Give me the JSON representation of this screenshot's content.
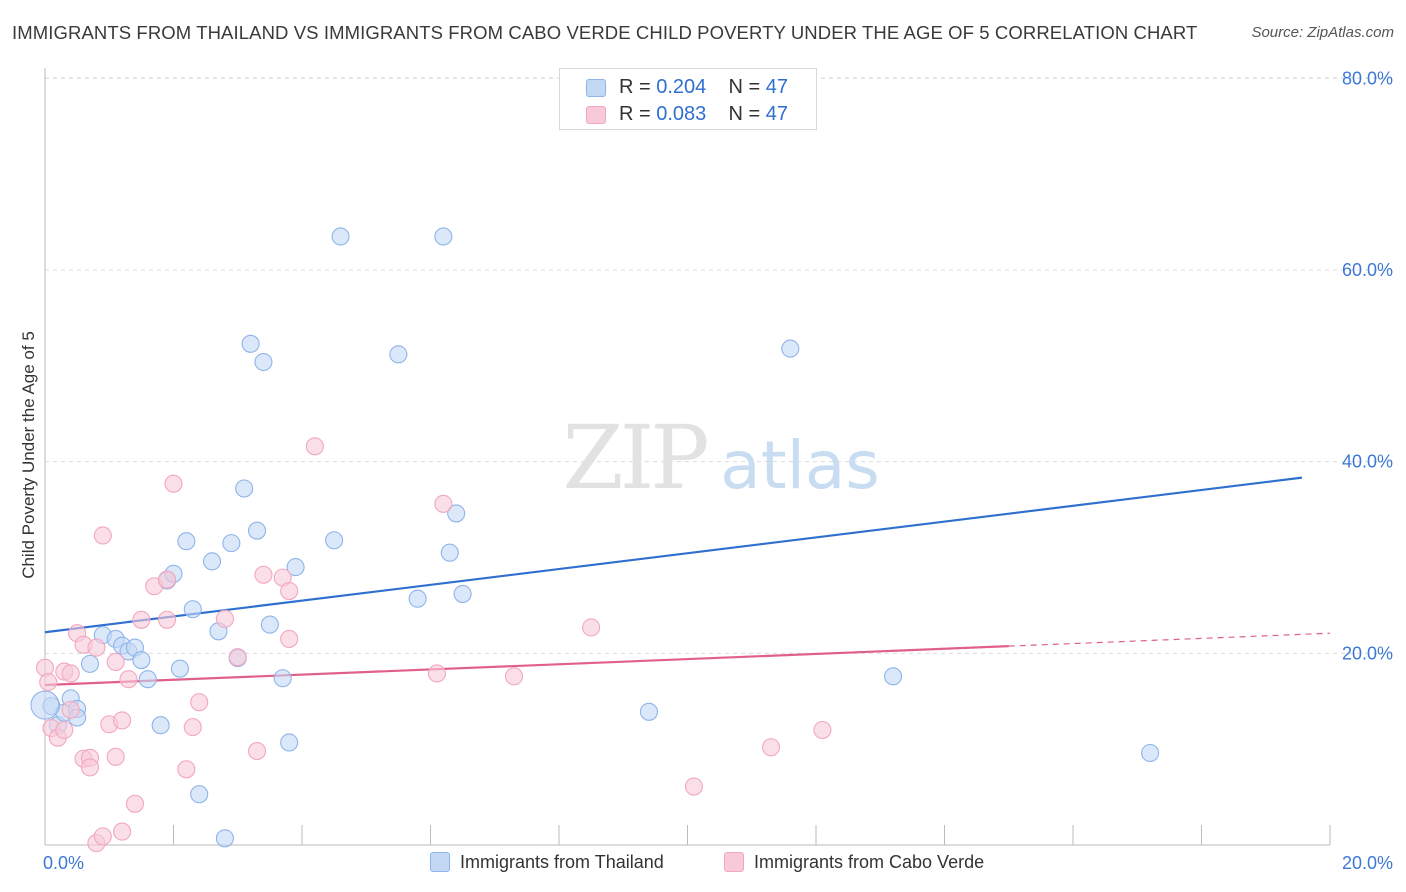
{
  "title": "IMMIGRANTS FROM THAILAND VS IMMIGRANTS FROM CABO VERDE CHILD POVERTY UNDER THE AGE OF 5 CORRELATION CHART",
  "source": "Source: ZipAtlas.com",
  "watermark": {
    "zip": "ZIP",
    "atlas": "atlas"
  },
  "legend_top": [
    {
      "r_label": "R = ",
      "r_value": "0.204",
      "n_label": "N = ",
      "n_value": "47"
    },
    {
      "r_label": "R = ",
      "r_value": "0.083",
      "n_label": "N = ",
      "n_value": "47"
    }
  ],
  "chart_data": {
    "type": "scatter",
    "xlabel": "",
    "ylabel": "Child Poverty Under the Age of 5",
    "xlim": [
      0,
      20
    ],
    "ylim": [
      0,
      80
    ],
    "x_tick_labels": [
      {
        "value": 0,
        "label": "0.0%"
      },
      {
        "value": 20,
        "label": "20.0%"
      }
    ],
    "y_tick_labels": [
      {
        "value": 20,
        "label": "20.0%"
      },
      {
        "value": 40,
        "label": "40.0%"
      },
      {
        "value": 60,
        "label": "60.0%"
      },
      {
        "value": 80,
        "label": "80.0%"
      }
    ],
    "grid": true,
    "legend_position": "bottom",
    "series": [
      {
        "name": "Immigrants from Thailand",
        "color": "#8fb4e8",
        "fill": "#c3d8f5",
        "line_color": "#2f6fd0",
        "trend": {
          "x": [
            0,
            20
          ],
          "y": [
            22.2,
            38.7
          ]
        },
        "trend_solid_to": 20,
        "points": [
          [
            0.1,
            14.5
          ],
          [
            0.2,
            12.5
          ],
          [
            0.3,
            13.8
          ],
          [
            0.4,
            15.3
          ],
          [
            0.5,
            14.2
          ],
          [
            0.5,
            13.3
          ],
          [
            0.7,
            18.9
          ],
          [
            0.9,
            21.9
          ],
          [
            1.1,
            21.5
          ],
          [
            1.2,
            20.8
          ],
          [
            1.3,
            20.2
          ],
          [
            1.4,
            20.6
          ],
          [
            1.5,
            19.3
          ],
          [
            1.6,
            17.3
          ],
          [
            1.8,
            12.5
          ],
          [
            1.9,
            27.6
          ],
          [
            2.0,
            28.3
          ],
          [
            2.1,
            18.4
          ],
          [
            2.2,
            31.7
          ],
          [
            2.3,
            24.6
          ],
          [
            2.4,
            5.3
          ],
          [
            2.6,
            29.6
          ],
          [
            2.7,
            22.3
          ],
          [
            2.8,
            0.7
          ],
          [
            2.9,
            31.5
          ],
          [
            3.0,
            19.5
          ],
          [
            3.1,
            37.2
          ],
          [
            3.2,
            52.3
          ],
          [
            3.3,
            32.8
          ],
          [
            3.4,
            50.4
          ],
          [
            3.5,
            23.0
          ],
          [
            3.7,
            17.4
          ],
          [
            3.8,
            10.7
          ],
          [
            3.9,
            29.0
          ],
          [
            4.5,
            31.8
          ],
          [
            4.6,
            63.5
          ],
          [
            5.5,
            51.2
          ],
          [
            5.8,
            25.7
          ],
          [
            6.2,
            63.5
          ],
          [
            6.3,
            30.5
          ],
          [
            6.4,
            34.6
          ],
          [
            6.5,
            26.2
          ],
          [
            9.4,
            13.9
          ],
          [
            11.6,
            51.8
          ],
          [
            13.2,
            17.6
          ],
          [
            17.2,
            9.6
          ],
          [
            0.0,
            14.6
          ]
        ]
      },
      {
        "name": "Immigrants from Cabo Verde",
        "color": "#f2a7bf",
        "fill": "#f8cad9",
        "line_color": "#e0608a",
        "trend": {
          "x": [
            0,
            20
          ],
          "y": [
            16.7,
            22.1
          ]
        },
        "trend_solid_to": 15,
        "points": [
          [
            0.0,
            18.5
          ],
          [
            0.1,
            12.2
          ],
          [
            0.2,
            11.2
          ],
          [
            0.3,
            18.1
          ],
          [
            0.4,
            14.1
          ],
          [
            0.4,
            17.9
          ],
          [
            0.5,
            22.1
          ],
          [
            0.6,
            20.9
          ],
          [
            0.6,
            9.0
          ],
          [
            0.7,
            9.1
          ],
          [
            0.7,
            8.1
          ],
          [
            0.8,
            20.6
          ],
          [
            0.8,
            0.2
          ],
          [
            0.9,
            0.9
          ],
          [
            0.9,
            32.3
          ],
          [
            1.0,
            12.6
          ],
          [
            1.1,
            19.1
          ],
          [
            1.1,
            9.2
          ],
          [
            1.2,
            1.4
          ],
          [
            1.2,
            13.0
          ],
          [
            1.3,
            17.3
          ],
          [
            1.4,
            4.3
          ],
          [
            1.5,
            23.5
          ],
          [
            1.7,
            27.0
          ],
          [
            1.9,
            27.7
          ],
          [
            1.9,
            23.5
          ],
          [
            2.0,
            37.7
          ],
          [
            2.2,
            7.9
          ],
          [
            2.3,
            12.3
          ],
          [
            2.4,
            14.9
          ],
          [
            2.8,
            23.6
          ],
          [
            3.0,
            19.6
          ],
          [
            3.3,
            9.8
          ],
          [
            3.4,
            28.2
          ],
          [
            3.7,
            27.9
          ],
          [
            3.8,
            21.5
          ],
          [
            3.8,
            26.5
          ],
          [
            4.2,
            41.6
          ],
          [
            6.1,
            17.9
          ],
          [
            6.2,
            35.6
          ],
          [
            7.3,
            17.6
          ],
          [
            8.5,
            22.7
          ],
          [
            10.1,
            6.1
          ],
          [
            11.3,
            10.2
          ],
          [
            12.1,
            12.0
          ],
          [
            0.05,
            17.0
          ],
          [
            0.3,
            12.0
          ]
        ]
      }
    ]
  }
}
